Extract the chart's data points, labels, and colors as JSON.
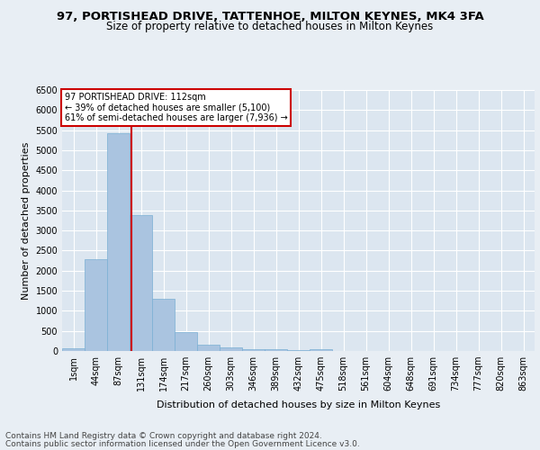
{
  "title1": "97, PORTISHEAD DRIVE, TATTENHOE, MILTON KEYNES, MK4 3FA",
  "title2": "Size of property relative to detached houses in Milton Keynes",
  "xlabel": "Distribution of detached houses by size in Milton Keynes",
  "ylabel": "Number of detached properties",
  "footer1": "Contains HM Land Registry data © Crown copyright and database right 2024.",
  "footer2": "Contains public sector information licensed under the Open Government Licence v3.0.",
  "categories": [
    "1sqm",
    "44sqm",
    "87sqm",
    "131sqm",
    "174sqm",
    "217sqm",
    "260sqm",
    "303sqm",
    "346sqm",
    "389sqm",
    "432sqm",
    "475sqm",
    "518sqm",
    "561sqm",
    "604sqm",
    "648sqm",
    "691sqm",
    "734sqm",
    "777sqm",
    "820sqm",
    "863sqm"
  ],
  "values": [
    60,
    2280,
    5430,
    3390,
    1310,
    480,
    165,
    95,
    55,
    35,
    20,
    55,
    10,
    5,
    5,
    2,
    2,
    2,
    2,
    2,
    2
  ],
  "bar_color": "#aac4e0",
  "bar_edgecolor": "#7aafd4",
  "property_line_x": 2.56,
  "property_line_color": "#cc0000",
  "annotation_text": "97 PORTISHEAD DRIVE: 112sqm\n← 39% of detached houses are smaller (5,100)\n61% of semi-detached houses are larger (7,936) →",
  "annotation_box_color": "#ffffff",
  "annotation_box_edgecolor": "#cc0000",
  "ylim": [
    0,
    6500
  ],
  "yticks": [
    0,
    500,
    1000,
    1500,
    2000,
    2500,
    3000,
    3500,
    4000,
    4500,
    5000,
    5500,
    6000,
    6500
  ],
  "background_color": "#e8eef4",
  "axes_background": "#dce6f0",
  "grid_color": "#ffffff",
  "title_fontsize": 9.5,
  "subtitle_fontsize": 8.5,
  "label_fontsize": 8,
  "tick_fontsize": 7,
  "footer_fontsize": 6.5,
  "annotation_fontsize": 7
}
